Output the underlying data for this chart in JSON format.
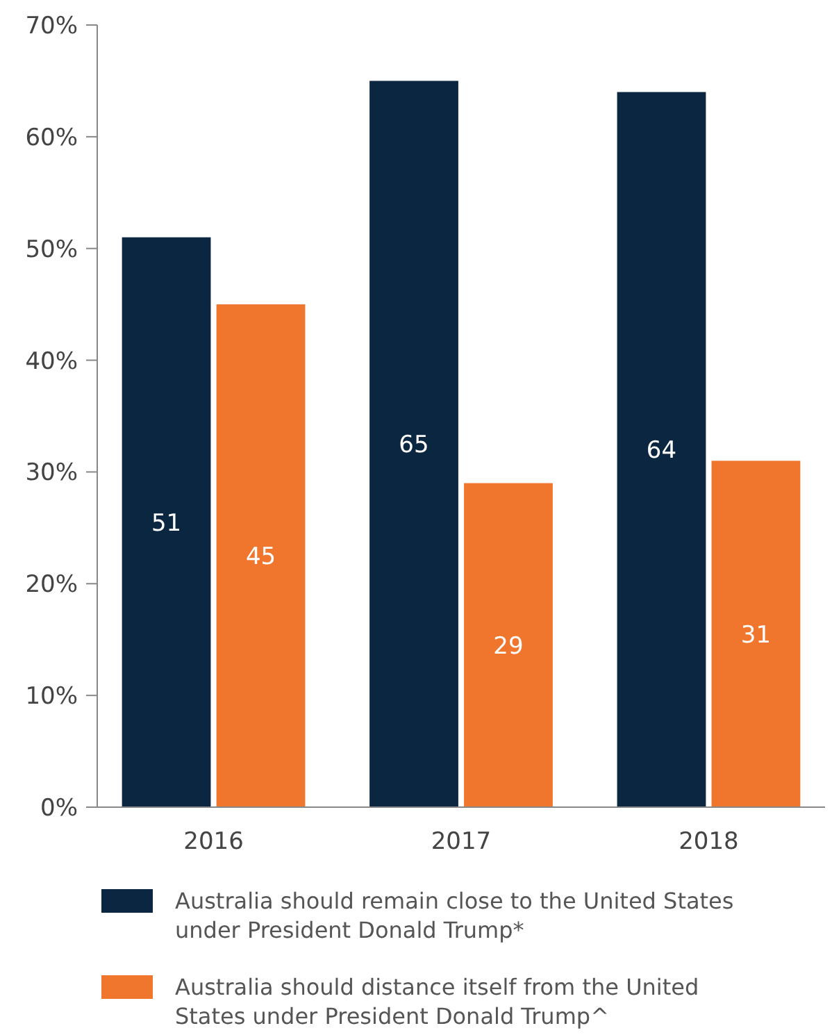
{
  "chart_data": {
    "type": "bar",
    "categories": [
      "2016",
      "2017",
      "2018"
    ],
    "series": [
      {
        "name": "Australia should remain close to the United States under President Donald Trump*",
        "color": "#0b2640",
        "values": [
          51,
          65,
          64
        ]
      },
      {
        "name": "Australia should distance itself from the United States under President Donald Trump^",
        "color": "#f0762e",
        "values": [
          45,
          29,
          31
        ]
      }
    ],
    "ylim": [
      0,
      70
    ],
    "yticks": [
      {
        "value": 0,
        "label": "0%"
      },
      {
        "value": 10,
        "label": "10%"
      },
      {
        "value": 20,
        "label": "20%"
      },
      {
        "value": 30,
        "label": "30%"
      },
      {
        "value": 40,
        "label": "40%"
      },
      {
        "value": 50,
        "label": "50%"
      },
      {
        "value": 60,
        "label": "60%"
      },
      {
        "value": 70,
        "label": "70%"
      }
    ],
    "data_labels": true,
    "legend": "bottom",
    "grid": false
  }
}
